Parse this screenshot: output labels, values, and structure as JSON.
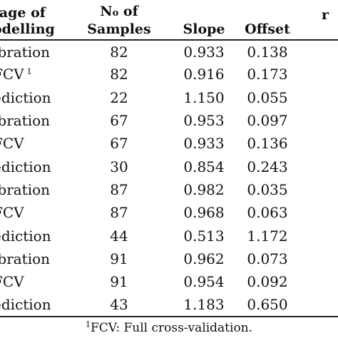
{
  "table": {
    "headers": {
      "stage": "tage of\nodelling",
      "n_samples": "No of\nSamples",
      "slope": "Slope",
      "offset": "Offset",
      "extra": "r"
    },
    "rows": [
      {
        "stage": "ibration",
        "n": "82",
        "slope": "0.933",
        "offset": "0.138"
      },
      {
        "stage": "FCV",
        "stage_sup": "1",
        "n": "82",
        "slope": "0.916",
        "offset": "0.173"
      },
      {
        "stage": "ediction",
        "n": "22",
        "slope": "1.150",
        "offset": "0.055"
      },
      {
        "stage": "ibration",
        "n": "67",
        "slope": "0.953",
        "offset": "0.097"
      },
      {
        "stage": "FCV",
        "n": "67",
        "slope": "0.933",
        "offset": "0.136"
      },
      {
        "stage": "ediction",
        "n": "30",
        "slope": "0.854",
        "offset": "0.243"
      },
      {
        "stage": "ibration",
        "n": "87",
        "slope": "0.982",
        "offset": "0.035"
      },
      {
        "stage": "FCV",
        "n": "87",
        "slope": "0.968",
        "offset": "0.063"
      },
      {
        "stage": "ediction",
        "n": "44",
        "slope": "0.513",
        "offset": "1.172"
      },
      {
        "stage": "ibration",
        "n": "91",
        "slope": "0.962",
        "offset": "0.073"
      },
      {
        "stage": "FCV",
        "n": "91",
        "slope": "0.954",
        "offset": "0.092"
      },
      {
        "stage": "ediction",
        "n": "43",
        "slope": "1.183",
        "offset": "0.650"
      }
    ]
  },
  "footnote": {
    "marker": "1",
    "text": "FCV: Full cross-validation."
  }
}
